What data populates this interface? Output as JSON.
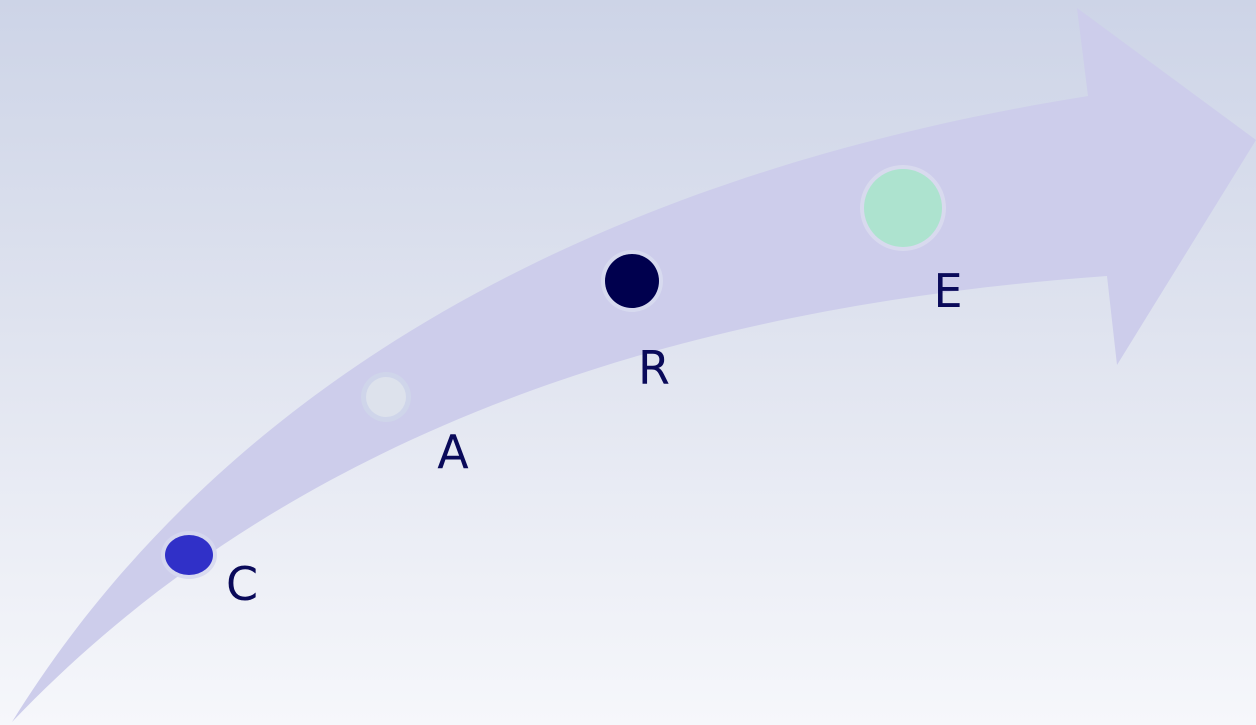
{
  "diagram": {
    "arrow_color": "#cdcdeb",
    "label_color": "#0a0a5a",
    "stages": [
      {
        "label": "C",
        "dot_color": "#3030c8"
      },
      {
        "label": "A",
        "dot_color": "#dde2ec"
      },
      {
        "label": "R",
        "dot_color": "#00004e"
      },
      {
        "label": "E",
        "dot_color": "#ade3cf"
      }
    ]
  }
}
